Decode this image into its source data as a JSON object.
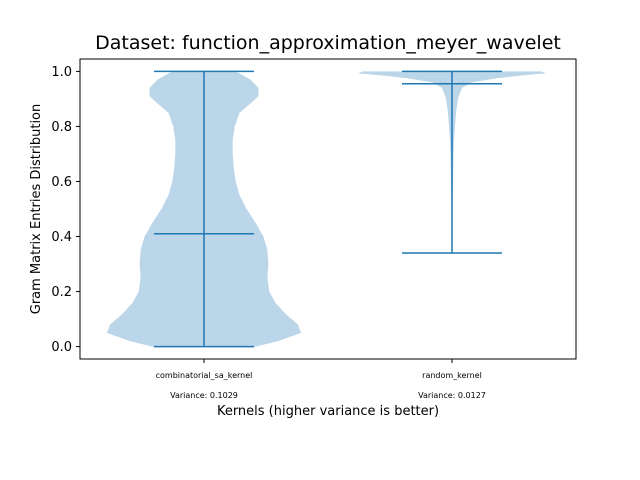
{
  "chart_data": {
    "type": "violin",
    "title": "Dataset: function_approximation_meyer_wavelet",
    "xlabel": "Kernels (higher variance is better)",
    "ylabel": "Gram Matrix Entries Distribution",
    "ylim": [
      -0.045,
      1.045
    ],
    "yticks": [
      "0.0",
      "0.2",
      "0.4",
      "0.6",
      "0.8",
      "1.0"
    ],
    "categories": [
      "combinatorial_sa_kernel",
      "random_kernel"
    ],
    "variance_labels": [
      "Variance: 0.1029",
      "Variance: 0.0127"
    ],
    "colors": {
      "fill": "#1f77b4",
      "fill_opacity": 0.3,
      "line": "#1f77b4"
    },
    "violins": [
      {
        "name": "combinatorial_sa_kernel",
        "min": 0.0,
        "max": 1.0,
        "median": 0.41,
        "density": [
          [
            0.0,
            0.52
          ],
          [
            0.02,
            0.75
          ],
          [
            0.05,
            0.98
          ],
          [
            0.08,
            0.95
          ],
          [
            0.12,
            0.82
          ],
          [
            0.16,
            0.72
          ],
          [
            0.2,
            0.66
          ],
          [
            0.25,
            0.64
          ],
          [
            0.3,
            0.65
          ],
          [
            0.35,
            0.64
          ],
          [
            0.4,
            0.6
          ],
          [
            0.45,
            0.52
          ],
          [
            0.5,
            0.43
          ],
          [
            0.55,
            0.36
          ],
          [
            0.6,
            0.32
          ],
          [
            0.65,
            0.3
          ],
          [
            0.7,
            0.29
          ],
          [
            0.75,
            0.29
          ],
          [
            0.8,
            0.31
          ],
          [
            0.85,
            0.36
          ],
          [
            0.88,
            0.46
          ],
          [
            0.91,
            0.55
          ],
          [
            0.94,
            0.55
          ],
          [
            0.97,
            0.47
          ],
          [
            1.0,
            0.32
          ]
        ]
      },
      {
        "name": "random_kernel",
        "min": 0.34,
        "max": 1.0,
        "median": 0.955,
        "density": [
          [
            0.34,
            0.0
          ],
          [
            0.5,
            0.005
          ],
          [
            0.6,
            0.01
          ],
          [
            0.7,
            0.015
          ],
          [
            0.75,
            0.02
          ],
          [
            0.8,
            0.03
          ],
          [
            0.85,
            0.04
          ],
          [
            0.9,
            0.06
          ],
          [
            0.94,
            0.1
          ],
          [
            0.96,
            0.2
          ],
          [
            0.975,
            0.45
          ],
          [
            0.985,
            0.7
          ],
          [
            0.993,
            0.95
          ],
          [
            1.0,
            0.9
          ]
        ]
      }
    ]
  }
}
